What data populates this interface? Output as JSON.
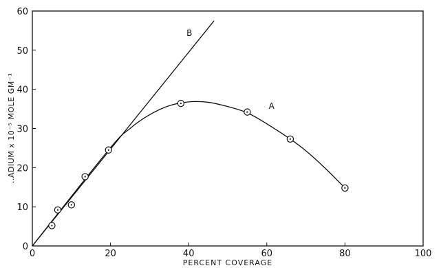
{
  "chart_data": {
    "type": "scatter",
    "title": "",
    "xlabel": "PERCENT  COVERAGE",
    "ylabel": "..ADIUM x 10⁻⁵  MOLE GM⁻¹",
    "xlim": [
      0,
      100
    ],
    "ylim": [
      0,
      60
    ],
    "xticks": [
      0,
      20,
      40,
      60,
      80,
      100
    ],
    "yticks": [
      0,
      10,
      20,
      30,
      40,
      50,
      60
    ],
    "grid": false,
    "series": [
      {
        "name": "A",
        "points": [
          {
            "x": 5,
            "y": 5.2
          },
          {
            "x": 6.5,
            "y": 9.2
          },
          {
            "x": 10,
            "y": 10.5
          },
          {
            "x": 13.5,
            "y": 17.7
          },
          {
            "x": 19.5,
            "y": 24.5
          },
          {
            "x": 38,
            "y": 36.4
          },
          {
            "x": 55,
            "y": 34.2
          },
          {
            "x": 66,
            "y": 27.3
          },
          {
            "x": 80,
            "y": 14.8
          }
        ],
        "curve": [
          {
            "x": 0,
            "y": 0
          },
          {
            "x": 19.5,
            "y": 24.5
          },
          {
            "x": 25,
            "y": 30
          },
          {
            "x": 30,
            "y": 33.5
          },
          {
            "x": 35,
            "y": 35.8
          },
          {
            "x": 40,
            "y": 36.8
          },
          {
            "x": 45,
            "y": 36.7
          },
          {
            "x": 50,
            "y": 35.6
          },
          {
            "x": 55,
            "y": 34.0
          },
          {
            "x": 60,
            "y": 31.2
          },
          {
            "x": 66,
            "y": 27.3
          },
          {
            "x": 70,
            "y": 24.3
          },
          {
            "x": 75,
            "y": 19.8
          },
          {
            "x": 80,
            "y": 14.8
          }
        ]
      },
      {
        "name": "B",
        "line": [
          {
            "x": 0,
            "y": 0
          },
          {
            "x": 46.5,
            "y": 57.5
          }
        ]
      }
    ]
  }
}
